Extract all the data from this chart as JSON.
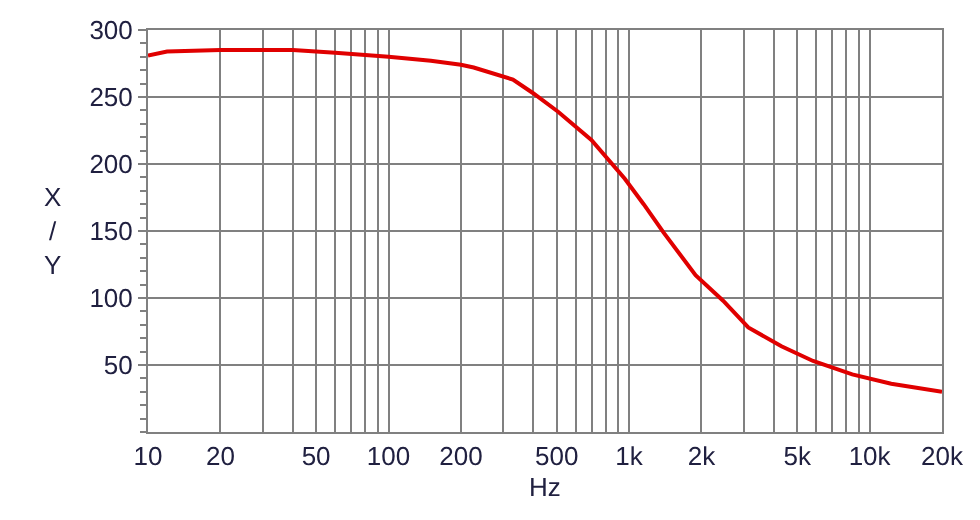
{
  "chart_data": {
    "type": "line",
    "xlabel": "Hz",
    "ylabel": "X / Y",
    "log": "x",
    "grid": true,
    "marker": "none",
    "line_style": "solid",
    "xlim": [
      10,
      20000
    ],
    "ylim": [
      0,
      300
    ],
    "xticks": [
      10,
      20,
      {
        "value": 30,
        "label": null
      },
      {
        "value": 40,
        "label": null
      },
      50,
      {
        "value": 60,
        "label": null
      },
      {
        "value": 70,
        "label": null
      },
      {
        "value": 80,
        "label": null
      },
      {
        "value": 90,
        "label": null
      },
      100,
      200,
      {
        "value": 300,
        "label": null
      },
      {
        "value": 400,
        "label": null
      },
      500,
      {
        "value": 600,
        "label": null
      },
      {
        "value": 700,
        "label": null
      },
      {
        "value": 800,
        "label": null
      },
      {
        "value": 900,
        "label": null
      },
      {
        "value": 1000,
        "label": "1k"
      },
      {
        "value": 2000,
        "label": "2k"
      },
      {
        "value": 3000,
        "label": null
      },
      {
        "value": 4000,
        "label": null
      },
      {
        "value": 5000,
        "label": "5k"
      },
      {
        "value": 6000,
        "label": null
      },
      {
        "value": 7000,
        "label": null
      },
      {
        "value": 8000,
        "label": null
      },
      {
        "value": 9000,
        "label": null
      },
      {
        "value": 10000,
        "label": "10k"
      },
      {
        "value": 20000,
        "label": "20k"
      }
    ],
    "yticks": [
      50,
      100,
      150,
      200,
      250,
      300
    ],
    "x": [
      10,
      12,
      20,
      40,
      60,
      100,
      150,
      200,
      226,
      329,
      398,
      507,
      697,
      960,
      1150,
      1390,
      1890,
      2460,
      3130,
      4300,
      5820,
      8470,
      12300,
      20000
    ],
    "series": [
      {
        "color": "#e00000",
        "values": [
          281,
          284,
          285,
          285,
          283,
          280,
          277,
          274,
          272,
          263,
          253,
          239,
          218,
          189,
          170,
          149,
          117,
          98,
          78,
          64,
          53,
          43,
          36,
          30
        ]
      }
    ]
  }
}
